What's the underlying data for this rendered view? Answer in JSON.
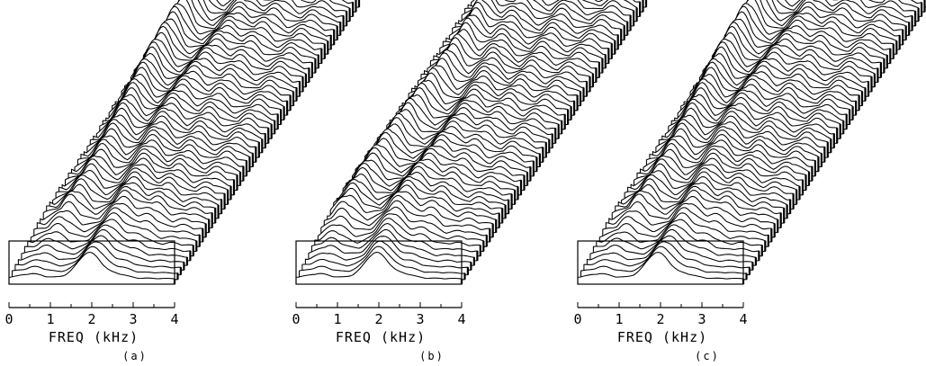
{
  "chart_data": [
    {
      "type": "area",
      "panel_label": "(a)",
      "xlabel": "FREQ (kHz)",
      "x_ticks": [
        "0",
        "1",
        "2",
        "3",
        "4"
      ],
      "xlim": [
        0,
        4
      ],
      "frame_count": 60,
      "formants_khz": [
        0.55,
        1.95,
        2.65,
        3.45
      ],
      "grid": false
    },
    {
      "type": "area",
      "panel_label": "(b)",
      "xlabel": "FREQ (kHz)",
      "x_ticks": [
        "0",
        "1",
        "2",
        "3",
        "4"
      ],
      "xlim": [
        0,
        4
      ],
      "frame_count": 60,
      "formants_khz": [
        0.55,
        1.95,
        2.65,
        3.45
      ],
      "grid": false
    },
    {
      "type": "area",
      "panel_label": "(c)",
      "xlabel": "FREQ (kHz)",
      "x_ticks": [
        "0",
        "1",
        "2",
        "3",
        "4"
      ],
      "xlim": [
        0,
        4
      ],
      "frame_count": 60,
      "formants_khz": [
        0.55,
        1.95,
        2.65,
        3.45
      ],
      "grid": false
    }
  ]
}
